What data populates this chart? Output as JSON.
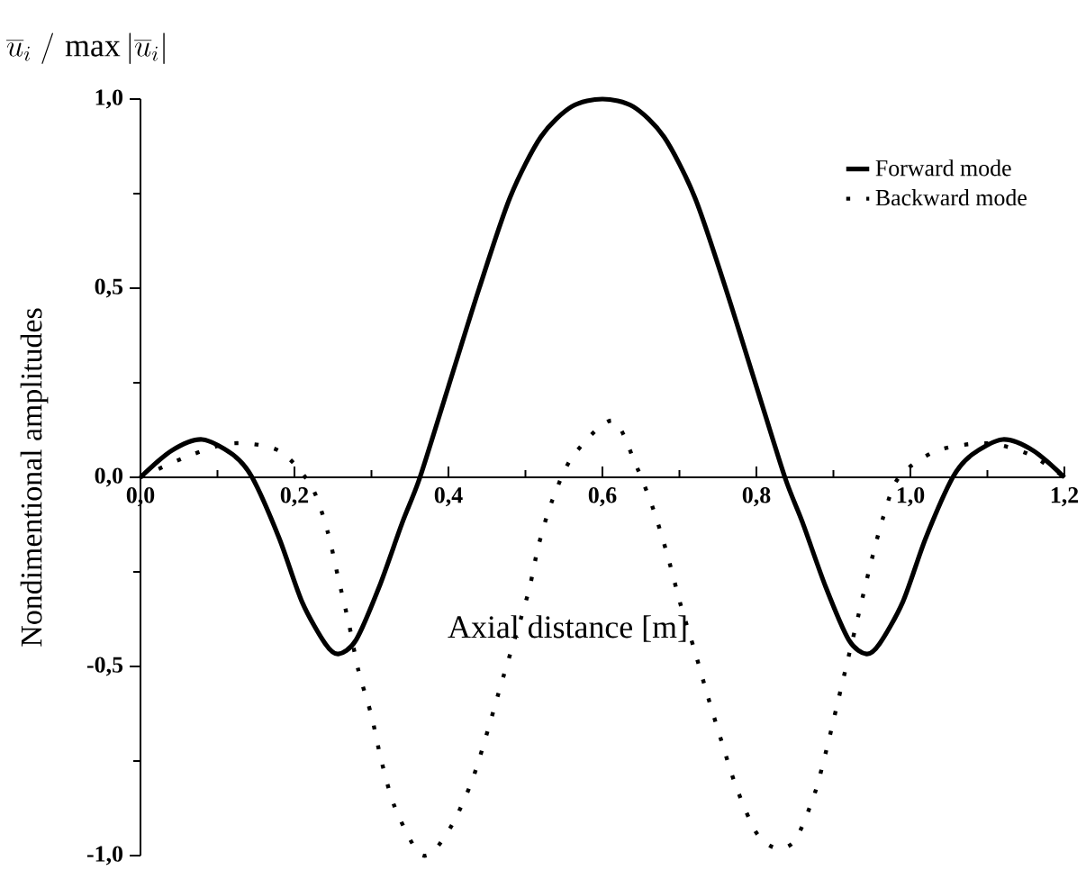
{
  "chart_data": {
    "type": "line",
    "xlabel": "Axial distance [m]",
    "ylabel": "Nondimentional amplitudes",
    "annotations": [
      "\\overline{u}_i \\;/\\, \\max\\left|\\overline{u}_i\\right|"
    ],
    "xlim": [
      0,
      1.2
    ],
    "ylim": [
      -1,
      1
    ],
    "xticks": [
      {
        "value": 0,
        "label": "0,0"
      },
      {
        "value": 0.2,
        "label": "0,2"
      },
      {
        "value": 0.4,
        "label": "0,4"
      },
      {
        "value": 0.6,
        "label": "0,6"
      },
      {
        "value": 0.8,
        "label": "0,8"
      },
      {
        "value": 1.0,
        "label": "1,0"
      },
      {
        "value": 1.2,
        "label": "1,2"
      }
    ],
    "yticks": [
      {
        "value": -1,
        "label": "-1,0"
      },
      {
        "value": -0.5,
        "label": "-0,5"
      },
      {
        "value": 0,
        "label": "0,0"
      },
      {
        "value": 0.5,
        "label": "0,5"
      },
      {
        "value": 1,
        "label": "1,0"
      }
    ],
    "legend": "top right",
    "grid": false,
    "series": [
      {
        "name": "Forward mode",
        "color": "#000000",
        "line_style": "solid",
        "x": [
          0,
          0.04,
          0.08,
          0.12,
          0.145,
          0.18,
          0.21,
          0.24,
          0.257,
          0.28,
          0.31,
          0.34,
          0.363,
          0.4,
          0.44,
          0.48,
          0.52,
          0.56,
          0.6,
          0.64,
          0.68,
          0.72,
          0.76,
          0.8,
          0.837,
          0.86,
          0.89,
          0.92,
          0.943,
          0.96,
          0.99,
          1.02,
          1.055,
          1.08,
          1.12,
          1.16,
          1.2
        ],
        "values": [
          0,
          0.07,
          0.1,
          0.06,
          0,
          -0.16,
          -0.33,
          -0.44,
          -0.467,
          -0.43,
          -0.29,
          -0.12,
          0,
          0.24,
          0.5,
          0.74,
          0.9,
          0.98,
          1.0,
          0.98,
          0.9,
          0.74,
          0.5,
          0.24,
          0,
          -0.12,
          -0.29,
          -0.43,
          -0.467,
          -0.44,
          -0.33,
          -0.16,
          0,
          0.06,
          0.1,
          0.07,
          0
        ]
      },
      {
        "name": "Backward mode",
        "color": "#000000",
        "line_style": "dotted",
        "x": [
          0,
          0.063,
          0.12,
          0.18,
          0.222,
          0.243,
          0.257,
          0.271,
          0.283,
          0.3,
          0.313,
          0.33,
          0.36,
          0.38,
          0.407,
          0.431,
          0.451,
          0.468,
          0.503,
          0.517,
          0.535,
          0.562,
          0.613,
          0.644,
          0.667,
          0.685,
          0.702,
          0.72,
          0.737,
          0.755,
          0.774,
          0.8,
          0.825,
          0.85,
          0.875,
          0.891,
          0.905,
          0.919,
          0.933,
          0.947,
          0.964,
          0.985,
          1.034,
          1.1,
          1.155,
          1.2
        ],
        "values": [
          0,
          0.057,
          0.09,
          0.07,
          -0.024,
          -0.143,
          -0.267,
          -0.39,
          -0.51,
          -0.63,
          -0.75,
          -0.87,
          -0.99,
          -0.99,
          -0.91,
          -0.8,
          -0.67,
          -0.55,
          -0.31,
          -0.18,
          -0.06,
          0.057,
          0.15,
          0.03,
          -0.09,
          -0.21,
          -0.34,
          -0.46,
          -0.58,
          -0.7,
          -0.82,
          -0.94,
          -0.98,
          -0.96,
          -0.84,
          -0.72,
          -0.6,
          -0.48,
          -0.36,
          -0.24,
          -0.11,
          0.0,
          0.07,
          0.09,
          0.06,
          0
        ]
      }
    ]
  }
}
